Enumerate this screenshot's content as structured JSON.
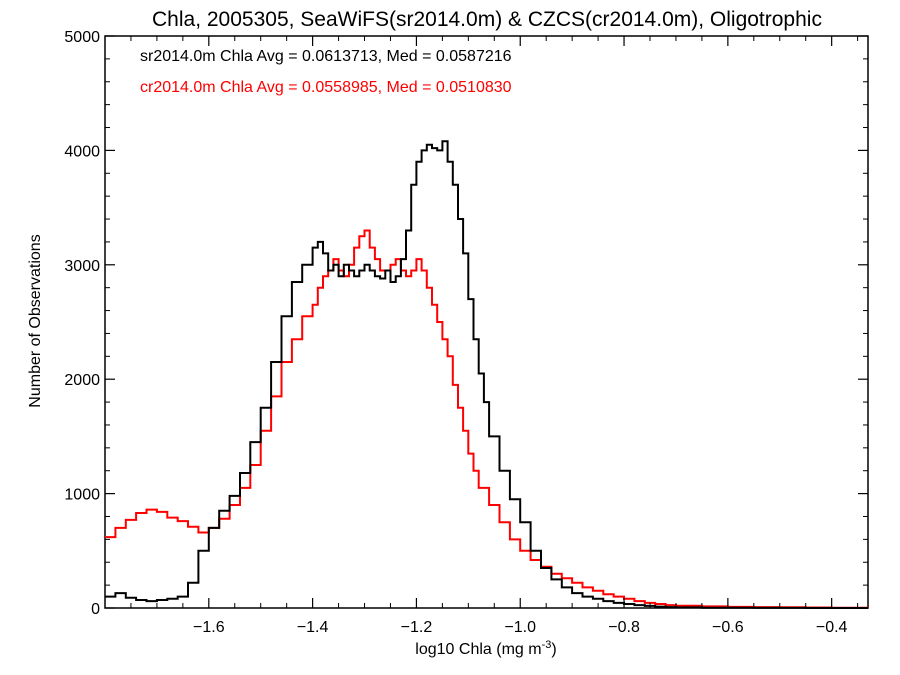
{
  "chart_data": {
    "type": "line",
    "title": "Chla, 2005305, SeaWiFS(sr2014.0m) & CZCS(cr2014.0m), Oligotrophic",
    "xlabel": "log10 Chla (mg m",
    "xlabel_sup": "-3",
    "xlabel_end": ")",
    "ylabel": "Number of Observations",
    "xlim": [
      -1.8,
      -0.33
    ],
    "ylim": [
      0,
      5000
    ],
    "x_ticks": [
      -1.6,
      -1.4,
      -1.2,
      -1.0,
      -0.8,
      -0.6,
      -0.4
    ],
    "x_tick_labels": [
      "−1.6",
      "−1.4",
      "−1.2",
      "−1.0",
      "−0.8",
      "−0.6",
      "−0.4"
    ],
    "y_ticks": [
      0,
      1000,
      2000,
      3000,
      4000,
      5000
    ],
    "y_tick_labels": [
      "0",
      "1000",
      "2000",
      "3000",
      "4000",
      "5000"
    ],
    "annotations": [
      {
        "text": "sr2014.0m Chla Avg = 0.0613713, Med = 0.0587216",
        "color": "#000000"
      },
      {
        "text": "cr2014.0m Chla Avg = 0.0558985, Med = 0.0510830",
        "color": "#ff0000"
      }
    ],
    "grid": false,
    "step": "histogram",
    "series": [
      {
        "color": "#000000",
        "x": [
          -1.8,
          -1.78,
          -1.76,
          -1.74,
          -1.72,
          -1.7,
          -1.68,
          -1.66,
          -1.64,
          -1.62,
          -1.6,
          -1.58,
          -1.56,
          -1.54,
          -1.52,
          -1.5,
          -1.48,
          -1.46,
          -1.44,
          -1.42,
          -1.4,
          -1.39,
          -1.38,
          -1.37,
          -1.36,
          -1.35,
          -1.34,
          -1.33,
          -1.32,
          -1.31,
          -1.3,
          -1.29,
          -1.28,
          -1.27,
          -1.26,
          -1.25,
          -1.24,
          -1.23,
          -1.22,
          -1.21,
          -1.2,
          -1.19,
          -1.18,
          -1.17,
          -1.16,
          -1.15,
          -1.14,
          -1.13,
          -1.12,
          -1.11,
          -1.1,
          -1.09,
          -1.08,
          -1.07,
          -1.06,
          -1.04,
          -1.02,
          -1.0,
          -0.98,
          -0.96,
          -0.94,
          -0.92,
          -0.9,
          -0.88,
          -0.86,
          -0.84,
          -0.82,
          -0.8,
          -0.78,
          -0.76,
          -0.74,
          -0.72,
          -0.7,
          -0.65,
          -0.6,
          -0.55,
          -0.5,
          -0.45,
          -0.4,
          -0.33
        ],
        "y": [
          100,
          130,
          90,
          70,
          60,
          70,
          80,
          100,
          220,
          500,
          700,
          850,
          980,
          1180,
          1450,
          1750,
          2150,
          2550,
          2850,
          3000,
          3150,
          3200,
          3100,
          2950,
          3000,
          2900,
          3000,
          2950,
          2900,
          2950,
          3000,
          2950,
          2900,
          2880,
          2950,
          2850,
          2900,
          3050,
          3300,
          3700,
          3900,
          4000,
          4050,
          4020,
          4000,
          4080,
          3900,
          3700,
          3400,
          3100,
          2700,
          2350,
          2050,
          1800,
          1500,
          1200,
          950,
          750,
          500,
          350,
          250,
          180,
          130,
          100,
          80,
          60,
          45,
          35,
          25,
          18,
          12,
          8,
          5,
          3,
          2,
          1,
          1,
          0,
          0,
          0
        ]
      },
      {
        "color": "#ff0000",
        "x": [
          -1.8,
          -1.78,
          -1.76,
          -1.74,
          -1.72,
          -1.7,
          -1.68,
          -1.66,
          -1.64,
          -1.62,
          -1.6,
          -1.58,
          -1.56,
          -1.54,
          -1.52,
          -1.5,
          -1.48,
          -1.46,
          -1.44,
          -1.42,
          -1.4,
          -1.39,
          -1.38,
          -1.37,
          -1.36,
          -1.35,
          -1.34,
          -1.33,
          -1.32,
          -1.31,
          -1.3,
          -1.29,
          -1.28,
          -1.27,
          -1.26,
          -1.25,
          -1.24,
          -1.23,
          -1.22,
          -1.21,
          -1.2,
          -1.19,
          -1.18,
          -1.17,
          -1.16,
          -1.15,
          -1.14,
          -1.13,
          -1.12,
          -1.11,
          -1.1,
          -1.09,
          -1.08,
          -1.06,
          -1.04,
          -1.02,
          -1.0,
          -0.98,
          -0.96,
          -0.94,
          -0.92,
          -0.9,
          -0.88,
          -0.86,
          -0.84,
          -0.82,
          -0.8,
          -0.78,
          -0.76,
          -0.74,
          -0.72,
          -0.7,
          -0.65,
          -0.6,
          -0.55,
          -0.5,
          -0.45,
          -0.4,
          -0.33
        ],
        "y": [
          620,
          700,
          770,
          830,
          860,
          840,
          790,
          760,
          710,
          660,
          700,
          780,
          900,
          1050,
          1250,
          1550,
          1850,
          2150,
          2350,
          2550,
          2650,
          2800,
          2900,
          2950,
          3050,
          2950,
          2900,
          3000,
          3150,
          3250,
          3300,
          3150,
          3050,
          2950,
          2950,
          3000,
          3050,
          2950,
          2900,
          2950,
          3050,
          2950,
          2800,
          2650,
          2500,
          2350,
          2200,
          1950,
          1750,
          1550,
          1350,
          1200,
          1050,
          900,
          750,
          600,
          500,
          420,
          360,
          300,
          260,
          220,
          180,
          150,
          120,
          100,
          80,
          60,
          45,
          35,
          25,
          20,
          14,
          10,
          8,
          6,
          4,
          3,
          2
        ]
      }
    ]
  }
}
